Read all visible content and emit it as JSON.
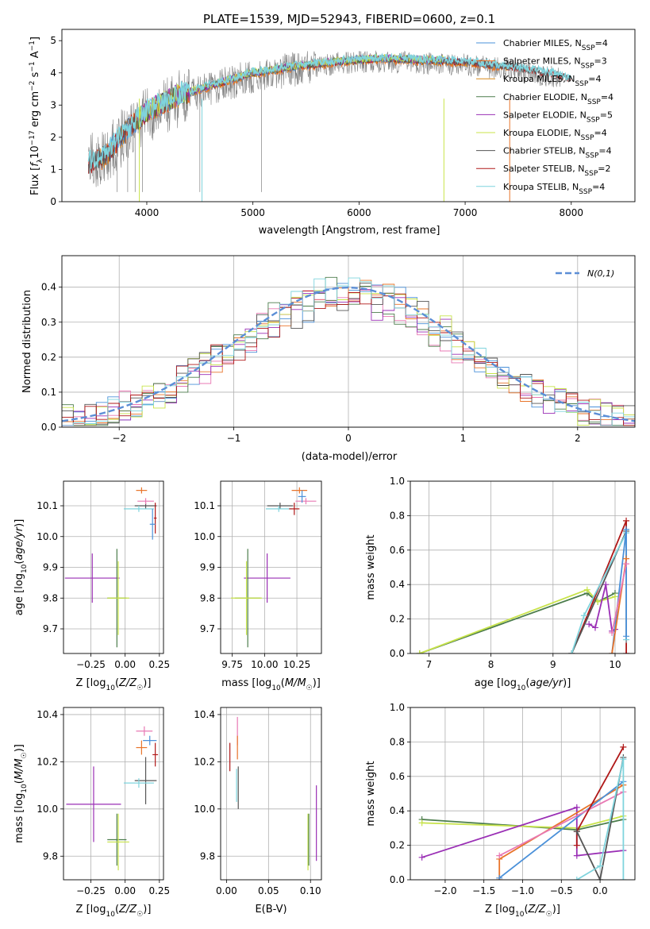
{
  "title": "PLATE=1539, MJD=52943, FIBERID=0600, z=0.1",
  "colors": {
    "Chabrier MILES": "#4a90d9",
    "Salpeter MILES": "#e8742a",
    "Kroupa MILES": "#d98a1a",
    "Chabrier ELODIE": "#4c7d4c",
    "Salpeter ELODIE": "#9a2fb5",
    "Kroupa ELODIE": "#c8e34a",
    "Chabrier STELIB": "#555555",
    "Salpeter STELIB": "#b01818",
    "Kroupa STELIB": "#7fd4dd",
    "pink": "#e879b4",
    "gaussian": "#5b8ed6",
    "data": "#808080"
  },
  "chart_data": [
    {
      "type": "line",
      "id": "spectrum",
      "xlabel": "wavelength [Angstrom, rest frame]",
      "ylabel": "Flux [f_λ 10^-17 erg cm^-2 s^-1 A^-1]",
      "xlim": [
        3200,
        8600
      ],
      "ylim": [
        0,
        5.35
      ],
      "xticks": [
        4000,
        5000,
        6000,
        7000,
        8000
      ],
      "yticks": [
        0,
        1,
        2,
        3,
        4,
        5
      ],
      "grid": false,
      "legend_position": "right",
      "legend": [
        {
          "name": "Chabrier MILES",
          "nssp": "4",
          "color": "Chabrier MILES"
        },
        {
          "name": "Salpeter MILES",
          "nssp": "3",
          "color": "Salpeter MILES"
        },
        {
          "name": "Kroupa MILES",
          "nssp": "4",
          "color": "Kroupa MILES"
        },
        {
          "name": "Chabrier ELODIE",
          "nssp": "4",
          "color": "Chabrier ELODIE"
        },
        {
          "name": "Salpeter ELODIE",
          "nssp": "5",
          "color": "Salpeter ELODIE"
        },
        {
          "name": "Kroupa ELODIE",
          "nssp": "4",
          "color": "Kroupa ELODIE"
        },
        {
          "name": "Chabrier STELIB",
          "nssp": "4",
          "color": "Chabrier STELIB"
        },
        {
          "name": "Salpeter STELIB",
          "nssp": "2",
          "color": "Salpeter STELIB"
        },
        {
          "name": "Kroupa STELIB",
          "nssp": "4",
          "color": "Kroupa STELIB"
        }
      ],
      "data_envelope": {
        "x": [
          3450,
          3600,
          3800,
          4000,
          4300,
          4600,
          5000,
          5400,
          5800,
          6200,
          6600,
          7000,
          7400,
          7700,
          7900
        ],
        "y": [
          1.2,
          1.4,
          2.1,
          2.7,
          3.2,
          3.5,
          3.9,
          4.1,
          4.3,
          4.35,
          4.3,
          4.25,
          4.1,
          3.95,
          3.85
        ]
      },
      "model_envelope": {
        "x": [
          3450,
          3600,
          3800,
          4000,
          4300,
          4600,
          5000,
          5400,
          5800,
          6200,
          6600,
          7000,
          7400,
          7800,
          8000
        ],
        "y": [
          1.2,
          1.4,
          2.2,
          2.8,
          3.3,
          3.6,
          4.0,
          4.2,
          4.35,
          4.45,
          4.4,
          4.35,
          4.2,
          4.0,
          3.8
        ]
      },
      "model_spans": {
        "MILES": [
          3540,
          7420
        ],
        "ELODIE": [
          3900,
          6800
        ],
        "STELIB": [
          3450,
          8000
        ]
      }
    },
    {
      "type": "line",
      "id": "residuals",
      "xlabel": "(data-model)/error",
      "ylabel": "Normed distribution",
      "xlim": [
        -2.5,
        2.5
      ],
      "ylim": [
        0,
        0.49
      ],
      "xticks": [
        -2,
        -1,
        0,
        1,
        2
      ],
      "xtick_labels": [
        "−2",
        "−1",
        "0",
        "1",
        "2"
      ],
      "yticks": [
        0,
        0.1,
        0.2,
        0.3,
        0.4
      ],
      "ytick_labels": [
        "0.0",
        "0.1",
        "0.2",
        "0.3",
        "0.4"
      ],
      "grid": true,
      "legend_position": "top-right",
      "legend_label": "N(0,1)",
      "bin_width": 0.1
    },
    {
      "type": "scatter",
      "id": "age_vs_Z",
      "xlabel": "Z [log10(Z/Z☉)]",
      "ylabel": "age [log10(age/yr)]",
      "xlim": [
        -0.45,
        0.28
      ],
      "ylim": [
        9.62,
        10.18
      ],
      "xticks": [
        -0.25,
        0.0,
        0.25
      ],
      "xtick_labels": [
        "−0.25",
        "0.00",
        "0.25"
      ],
      "yticks": [
        9.7,
        9.8,
        9.9,
        10.0,
        10.1
      ],
      "ytick_labels": [
        "9.7",
        "9.8",
        "9.9",
        "10.0",
        "10.1"
      ],
      "grid": true,
      "points": [
        {
          "c": "Salpeter ELODIE",
          "x": -0.24,
          "xe": 0.2,
          "y": 9.865,
          "ye": 0.08
        },
        {
          "c": "Chabrier ELODIE",
          "x": -0.06,
          "xe": 0.07,
          "y": 9.8,
          "ye": 0.16
        },
        {
          "c": "Kroupa ELODIE",
          "x": -0.05,
          "xe": 0.08,
          "y": 9.8,
          "ye": 0.12
        },
        {
          "c": "Chabrier STELIB",
          "x": 0.15,
          "xe": 0.08,
          "y": 10.1,
          "ye": 0.01
        },
        {
          "c": "Kroupa STELIB",
          "x": 0.1,
          "xe": 0.11,
          "y": 10.09,
          "ye": 0.01
        },
        {
          "c": "pink",
          "x": 0.15,
          "xe": 0.06,
          "y": 10.115,
          "ye": 0.01
        },
        {
          "c": "Salpeter MILES",
          "x": 0.12,
          "xe": 0.04,
          "y": 10.15,
          "ye": 0.01
        },
        {
          "c": "Salpeter STELIB",
          "x": 0.22,
          "xe": 0.01,
          "y": 10.06,
          "ye": 0.05
        },
        {
          "c": "Chabrier MILES",
          "x": 0.2,
          "xe": 0.02,
          "y": 10.04,
          "ye": 0.05
        }
      ]
    },
    {
      "type": "scatter",
      "id": "age_vs_mass",
      "xlabel": "mass [log10(M/M☉)]",
      "ylabel": "",
      "xlim": [
        9.66,
        10.44
      ],
      "ylim": [
        9.62,
        10.18
      ],
      "xticks": [
        9.75,
        10.0,
        10.25
      ],
      "xtick_labels": [
        "9.75",
        "10.00",
        "10.25"
      ],
      "yticks": [
        9.7,
        9.8,
        9.9,
        10.0,
        10.1
      ],
      "ytick_labels": [
        "9.7",
        "9.8",
        "9.9",
        "10.0",
        "10.1"
      ],
      "grid": true,
      "points": [
        {
          "c": "Salpeter ELODIE",
          "x": 10.02,
          "xe": 0.18,
          "y": 9.865,
          "ye": 0.08
        },
        {
          "c": "Chabrier ELODIE",
          "x": 9.87,
          "xe": 0.1,
          "y": 9.8,
          "ye": 0.16
        },
        {
          "c": "Kroupa ELODIE",
          "x": 9.86,
          "xe": 0.12,
          "y": 9.8,
          "ye": 0.12
        },
        {
          "c": "Chabrier STELIB",
          "x": 10.12,
          "xe": 0.1,
          "y": 10.1,
          "ye": 0.01
        },
        {
          "c": "Kroupa STELIB",
          "x": 10.11,
          "xe": 0.1,
          "y": 10.09,
          "ye": 0.01
        },
        {
          "c": "pink",
          "x": 10.32,
          "xe": 0.08,
          "y": 10.115,
          "ye": 0.01
        },
        {
          "c": "Salpeter MILES",
          "x": 10.27,
          "xe": 0.06,
          "y": 10.15,
          "ye": 0.01
        },
        {
          "c": "Salpeter STELIB",
          "x": 10.23,
          "xe": 0.04,
          "y": 10.09,
          "ye": 0.02
        },
        {
          "c": "Chabrier MILES",
          "x": 10.29,
          "xe": 0.03,
          "y": 10.13,
          "ye": 0.02
        }
      ]
    },
    {
      "type": "line",
      "id": "massweight_vs_age",
      "xlabel": "age [log10(age/yr)]",
      "ylabel": "mass weight",
      "xlim": [
        6.7,
        10.32
      ],
      "ylim": [
        0,
        1.0
      ],
      "xticks": [
        7,
        8,
        9,
        10
      ],
      "yticks": [
        0,
        0.2,
        0.4,
        0.6,
        0.8,
        1.0
      ],
      "ytick_labels": [
        "0.0",
        "0.2",
        "0.4",
        "0.6",
        "0.8",
        "1.0"
      ],
      "grid": true,
      "series": [
        {
          "c": "Chabrier ELODIE",
          "x": [
            6.85,
            9.55,
            9.72,
            10.0
          ],
          "y": [
            0.0,
            0.35,
            0.3,
            0.35
          ]
        },
        {
          "c": "Kroupa ELODIE",
          "x": [
            6.85,
            9.55,
            9.72,
            10.0
          ],
          "y": [
            0.0,
            0.37,
            0.3,
            0.33
          ]
        },
        {
          "c": "Salpeter ELODIE",
          "x": [
            9.58,
            9.68,
            9.85,
            9.95,
            10.0
          ],
          "y": [
            0.17,
            0.15,
            0.4,
            0.13,
            0.14
          ]
        },
        {
          "c": "Salpeter STELIB",
          "x": [
            9.3,
            10.18,
            10.18
          ],
          "y": [
            0.0,
            0.77,
            0.0
          ]
        },
        {
          "c": "Chabrier STELIB",
          "x": [
            9.3,
            10.18
          ],
          "y": [
            0.0,
            0.71
          ]
        },
        {
          "c": "Kroupa STELIB",
          "x": [
            9.3,
            9.5,
            10.18,
            10.18
          ],
          "y": [
            0.0,
            0.22,
            0.7,
            0.08
          ]
        },
        {
          "c": "Chabrier MILES",
          "x": [
            9.95,
            10.18,
            10.18
          ],
          "y": [
            0.0,
            0.72,
            0.1
          ]
        },
        {
          "c": "Salpeter MILES",
          "x": [
            9.95,
            10.18
          ],
          "y": [
            0.0,
            0.55
          ]
        },
        {
          "c": "pink",
          "x": [
            9.95,
            10.18
          ],
          "y": [
            0.12,
            0.52
          ]
        }
      ]
    },
    {
      "type": "scatter",
      "id": "mass_vs_Z",
      "xlabel": "Z [log10(Z/Z☉)]",
      "ylabel": "mass [log10(M/M☉)]",
      "xlim": [
        -0.45,
        0.28
      ],
      "ylim": [
        9.7,
        10.43
      ],
      "xticks": [
        -0.25,
        0.0,
        0.25
      ],
      "xtick_labels": [
        "−0.25",
        "0.00",
        "0.25"
      ],
      "yticks": [
        9.8,
        10.0,
        10.2,
        10.4
      ],
      "ytick_labels": [
        "9.8",
        "10.0",
        "10.2",
        "10.4"
      ],
      "grid": true,
      "points": [
        {
          "c": "Salpeter ELODIE",
          "x": -0.23,
          "xe": 0.2,
          "y": 10.02,
          "ye": 0.16
        },
        {
          "c": "Chabrier ELODIE",
          "x": -0.06,
          "xe": 0.07,
          "y": 9.87,
          "ye": 0.11
        },
        {
          "c": "Kroupa ELODIE",
          "x": -0.05,
          "xe": 0.08,
          "y": 9.86,
          "ye": 0.12
        },
        {
          "c": "Chabrier STELIB",
          "x": 0.15,
          "xe": 0.08,
          "y": 10.12,
          "ye": 0.1
        },
        {
          "c": "Kroupa STELIB",
          "x": 0.1,
          "xe": 0.11,
          "y": 10.11,
          "ye": 0.02
        },
        {
          "c": "pink",
          "x": 0.14,
          "xe": 0.06,
          "y": 10.33,
          "ye": 0.02
        },
        {
          "c": "Salpeter MILES",
          "x": 0.12,
          "xe": 0.04,
          "y": 10.26,
          "ye": 0.03
        },
        {
          "c": "Salpeter STELIB",
          "x": 0.22,
          "xe": 0.02,
          "y": 10.23,
          "ye": 0.05
        },
        {
          "c": "Chabrier MILES",
          "x": 0.18,
          "xe": 0.05,
          "y": 10.29,
          "ye": 0.02
        }
      ]
    },
    {
      "type": "scatter",
      "id": "mass_vs_EBV",
      "xlabel": "E(B-V)",
      "ylabel": "",
      "xlim": [
        -0.007,
        0.113
      ],
      "ylim": [
        9.7,
        10.43
      ],
      "xticks": [
        0.0,
        0.05,
        0.1
      ],
      "xtick_labels": [
        "0.00",
        "0.05",
        "0.10"
      ],
      "yticks": [
        9.8,
        10.0,
        10.2,
        10.4
      ],
      "ytick_labels": [
        "9.8",
        "10.0",
        "10.2",
        "10.4"
      ],
      "grid": true,
      "points": [
        {
          "c": "Salpeter STELIB",
          "x": 0.004,
          "xe": 0,
          "y": 10.22,
          "ye": 0.06
        },
        {
          "c": "pink",
          "x": 0.013,
          "xe": 0,
          "y": 10.33,
          "ye": 0.06
        },
        {
          "c": "Salpeter MILES",
          "x": 0.013,
          "xe": 0,
          "y": 10.26,
          "ye": 0.05
        },
        {
          "c": "Kroupa STELIB",
          "x": 0.012,
          "xe": 0,
          "y": 10.1,
          "ye": 0.07
        },
        {
          "c": "Chabrier STELIB",
          "x": 0.014,
          "xe": 0,
          "y": 10.09,
          "ye": 0.09
        },
        {
          "c": "Kroupa ELODIE",
          "x": 0.097,
          "xe": 0,
          "y": 9.86,
          "ye": 0.12
        },
        {
          "c": "Chabrier ELODIE",
          "x": 0.098,
          "xe": 0,
          "y": 9.87,
          "ye": 0.11
        },
        {
          "c": "Salpeter ELODIE",
          "x": 0.107,
          "xe": 0,
          "y": 9.94,
          "ye": 0.16
        }
      ]
    },
    {
      "type": "line",
      "id": "massweight_vs_Z",
      "xlabel": "Z [log10(Z/Z☉)]",
      "ylabel": "mass weight",
      "xlim": [
        -2.45,
        0.45
      ],
      "ylim": [
        0,
        1.0
      ],
      "xticks": [
        -2.0,
        -1.5,
        -1.0,
        -0.5,
        0.0
      ],
      "xtick_labels": [
        "−2.0",
        "−1.5",
        "−1.0",
        "−0.5",
        "0.0"
      ],
      "yticks": [
        0,
        0.2,
        0.4,
        0.6,
        0.8,
        1.0
      ],
      "ytick_labels": [
        "0.0",
        "0.2",
        "0.4",
        "0.6",
        "0.8",
        "1.0"
      ],
      "grid": true,
      "series": [
        {
          "c": "Chabrier ELODIE",
          "x": [
            -2.3,
            -0.3,
            0.3
          ],
          "y": [
            0.35,
            0.29,
            0.35
          ]
        },
        {
          "c": "Kroupa ELODIE",
          "x": [
            -2.3,
            -0.3,
            0.3
          ],
          "y": [
            0.33,
            0.3,
            0.37
          ]
        },
        {
          "c": "Salpeter ELODIE",
          "x": [
            -2.3,
            -0.3,
            -0.3,
            0.3
          ],
          "y": [
            0.13,
            0.42,
            0.14,
            0.17
          ]
        },
        {
          "c": "Salpeter MILES",
          "x": [
            -1.3,
            -1.3,
            0.3
          ],
          "y": [
            0.0,
            0.12,
            0.55
          ]
        },
        {
          "c": "Chabrier MILES",
          "x": [
            -1.3,
            0.3
          ],
          "y": [
            0.01,
            0.57
          ]
        },
        {
          "c": "pink",
          "x": [
            -1.3,
            0.3
          ],
          "y": [
            0.14,
            0.51
          ]
        },
        {
          "c": "Salpeter STELIB",
          "x": [
            -0.3,
            -0.3,
            0.3
          ],
          "y": [
            0.2,
            0.28,
            0.77
          ]
        },
        {
          "c": "Chabrier STELIB",
          "x": [
            -0.3,
            0.0,
            0.3
          ],
          "y": [
            0.28,
            0.0,
            0.71
          ]
        },
        {
          "c": "Kroupa STELIB",
          "x": [
            -0.3,
            0.0,
            0.3,
            0.3
          ],
          "y": [
            0.0,
            0.08,
            0.7,
            0.0
          ]
        }
      ]
    }
  ]
}
